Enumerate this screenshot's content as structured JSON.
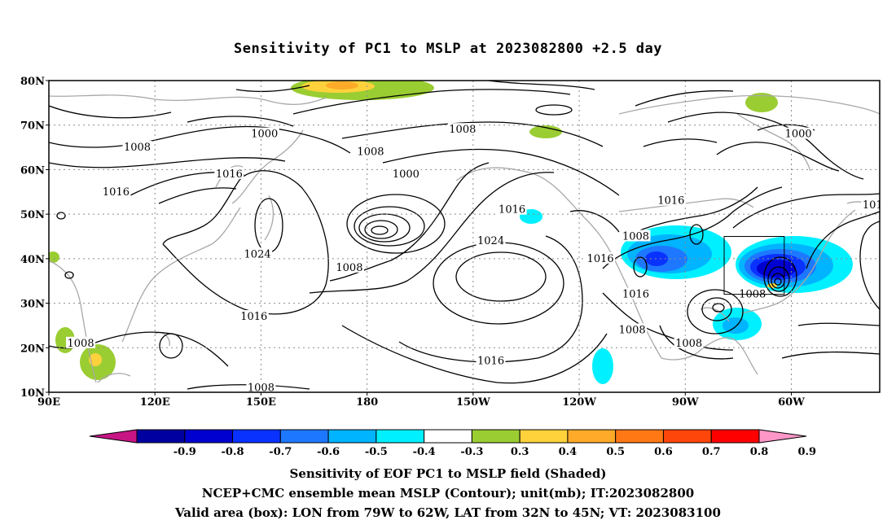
{
  "title": "Sensitivity of PC1 to MSLP at 2023082800 +2.5 day",
  "map": {
    "extent": {
      "lon_min": 90,
      "lon_max": 325,
      "lat_min": 10,
      "lat_max": 80
    },
    "lat_ticks": [
      {
        "value": 80,
        "label": "80N"
      },
      {
        "value": 70,
        "label": "70N"
      },
      {
        "value": 60,
        "label": "60N"
      },
      {
        "value": 50,
        "label": "50N"
      },
      {
        "value": 40,
        "label": "40N"
      },
      {
        "value": 30,
        "label": "30N"
      },
      {
        "value": 20,
        "label": "20N"
      },
      {
        "value": 10,
        "label": "10N"
      }
    ],
    "lon_ticks": [
      {
        "value": 90,
        "label": "90E"
      },
      {
        "value": 120,
        "label": "120E"
      },
      {
        "value": 150,
        "label": "150E"
      },
      {
        "value": 180,
        "label": "180"
      },
      {
        "value": 210,
        "label": "150W"
      },
      {
        "value": 240,
        "label": "120W"
      },
      {
        "value": 270,
        "label": "90W"
      },
      {
        "value": 300,
        "label": "60W"
      }
    ],
    "grid": "dotted",
    "valid_box": {
      "lon_min": 281,
      "lon_max": 298,
      "lat_min": 32,
      "lat_max": 45
    },
    "contour_labels": [
      {
        "text": "1000",
        "lon": 151,
        "lat": 68
      },
      {
        "text": "1008",
        "lon": 115,
        "lat": 65
      },
      {
        "text": "1008",
        "lon": 207,
        "lat": 69
      },
      {
        "text": "1008",
        "lon": 181,
        "lat": 64
      },
      {
        "text": "1000",
        "lon": 191,
        "lat": 59
      },
      {
        "text": "1016",
        "lon": 141,
        "lat": 59
      },
      {
        "text": "1016",
        "lon": 109,
        "lat": 55
      },
      {
        "text": "1024",
        "lon": 149,
        "lat": 41
      },
      {
        "text": "1008",
        "lon": 175,
        "lat": 38
      },
      {
        "text": "1016",
        "lon": 148,
        "lat": 27
      },
      {
        "text": "1016",
        "lon": 221,
        "lat": 51
      },
      {
        "text": "1024",
        "lon": 215,
        "lat": 44
      },
      {
        "text": "1016",
        "lon": 246,
        "lat": 40
      },
      {
        "text": "1008",
        "lon": 256,
        "lat": 45
      },
      {
        "text": "1016",
        "lon": 266,
        "lat": 53
      },
      {
        "text": "1016",
        "lon": 256,
        "lat": 32
      },
      {
        "text": "1008",
        "lon": 255,
        "lat": 24
      },
      {
        "text": "1008",
        "lon": 271,
        "lat": 21
      },
      {
        "text": "1008",
        "lon": 289,
        "lat": 32
      },
      {
        "text": "1016",
        "lon": 215,
        "lat": 17
      },
      {
        "text": "1008",
        "lon": 99,
        "lat": 21
      },
      {
        "text": "1008",
        "lon": 150,
        "lat": 11
      },
      {
        "text": "1000",
        "lon": 302,
        "lat": 68
      },
      {
        "text": "101",
        "lon": 323,
        "lat": 52
      }
    ]
  },
  "colorbar": {
    "labels": [
      "-0.9",
      "-0.8",
      "-0.7",
      "-0.6",
      "-0.5",
      "-0.4",
      "-0.3",
      "0.3",
      "0.4",
      "0.5",
      "0.6",
      "0.7",
      "0.8",
      "0.9"
    ],
    "colors": [
      "#c71585",
      "#0000a0",
      "#0000d0",
      "#0a32ff",
      "#1e78ff",
      "#00b4ff",
      "#00f0ff",
      "#ffffff",
      "#9acd32",
      "#ffd23c",
      "#ffaa28",
      "#ff7814",
      "#ff460a",
      "#ff0000",
      "#ff96c8"
    ]
  },
  "captions": {
    "line1": "Sensitivity of EOF PC1 to MSLP field (Shaded)",
    "line2": "NCEP+CMC ensemble mean MSLP (Contour); unit(mb); IT:2023082800",
    "line3": "Valid area (box): LON from 79W to 62W, LAT from 32N to 45N; VT: 2023083100"
  }
}
